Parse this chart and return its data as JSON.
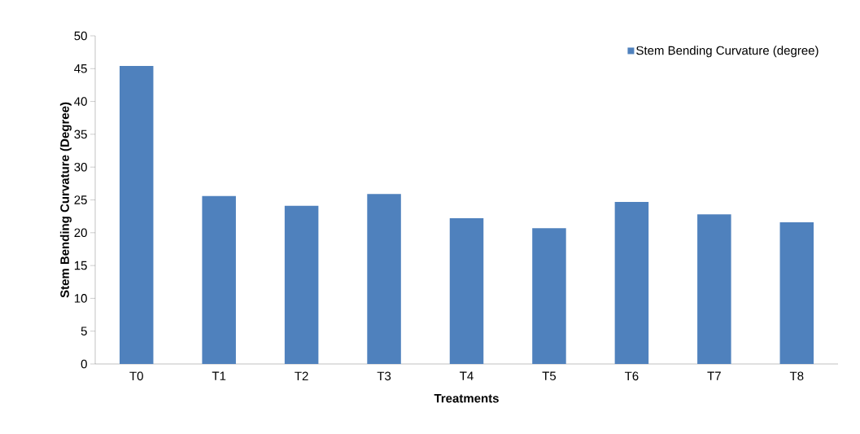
{
  "chart_data": {
    "type": "bar",
    "xlabel": "Treatments",
    "ylabel": "Stem Bending Curvature (Degree)",
    "categories": [
      "T0",
      "T1",
      "T2",
      "T3",
      "T4",
      "T5",
      "T6",
      "T7",
      "T8"
    ],
    "series": [
      {
        "name": "Stem Bending Curvature (degree)",
        "color": "#4f81bd",
        "values": [
          45.4,
          25.6,
          24.1,
          25.9,
          22.2,
          20.7,
          24.7,
          22.8,
          21.6
        ]
      }
    ],
    "ylim": [
      0,
      50
    ],
    "yticks": [
      0,
      5,
      10,
      15,
      20,
      25,
      30,
      35,
      40,
      45,
      50
    ],
    "grid": false,
    "legend": "top right"
  }
}
